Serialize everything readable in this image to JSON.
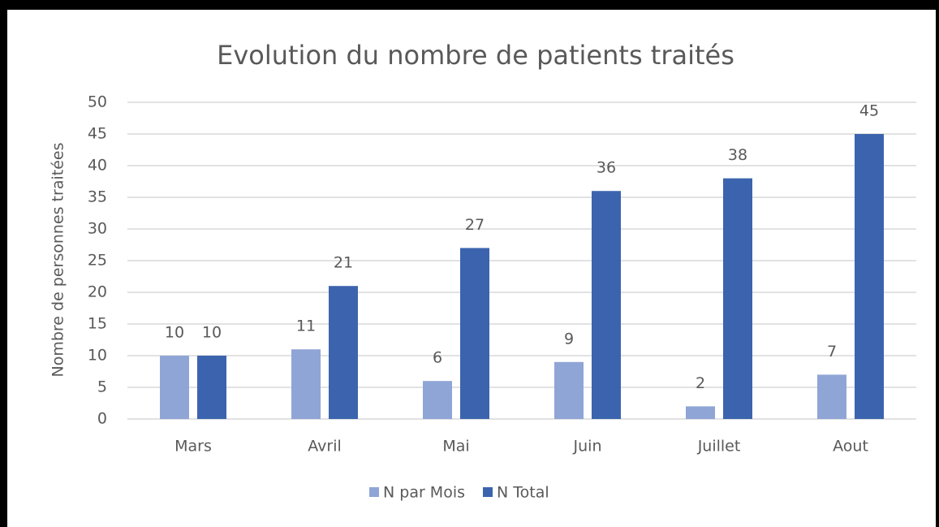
{
  "chart_data": {
    "type": "bar",
    "title": "Evolution du nombre de patients traités",
    "y_label": "Nombre de personnes traitées",
    "categories": [
      "Mars",
      "Avril",
      "Mai",
      "Juin",
      "Juillet",
      "Aout"
    ],
    "series": [
      {
        "name": "N par Mois",
        "color": "#8fa5d6",
        "values": [
          10,
          11,
          6,
          9,
          2,
          7
        ]
      },
      {
        "name": "N Total",
        "color": "#3c64ae",
        "values": [
          10,
          21,
          27,
          36,
          38,
          45
        ]
      }
    ],
    "ylim": [
      0,
      50
    ],
    "yticks": [
      0,
      5,
      10,
      15,
      20,
      25,
      30,
      35,
      40,
      45,
      50
    ],
    "grid": true,
    "legend": "bottom"
  }
}
